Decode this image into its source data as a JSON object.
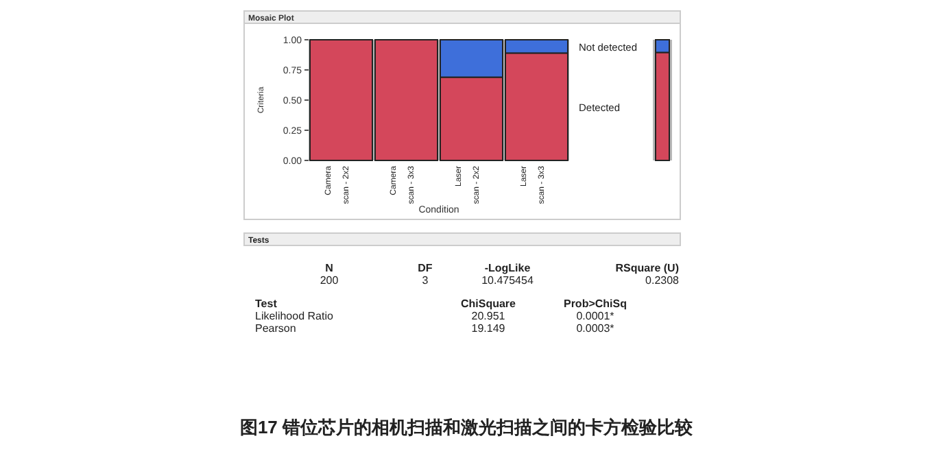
{
  "chart_data": {
    "type": "bar",
    "stacked": true,
    "title": "Mosaic Plot",
    "xlabel": "Condition",
    "ylabel": "Criteria",
    "categories": [
      "Camera scan - 2x2",
      "Camera scan - 3x3",
      "Laser scan - 2x2",
      "Laser scan - 3x3"
    ],
    "series": [
      {
        "name": "Detected",
        "color": "#d4475b",
        "values": [
          1,
          1,
          0.69,
          0.89
        ]
      },
      {
        "name": "Not detected",
        "color": "#3e6fda",
        "values": [
          0,
          0,
          0.31,
          0.11
        ]
      }
    ],
    "ylim": [
      0,
      1
    ],
    "yticks": [
      {
        "value": 0,
        "label": "0.00"
      },
      {
        "value": 0.25,
        "label": "0.25"
      },
      {
        "value": 0.5,
        "label": "0.50"
      },
      {
        "value": 0.75,
        "label": "0.75"
      },
      {
        "value": 1,
        "label": "1.00"
      }
    ],
    "grid": false,
    "legend": "right",
    "annotations": [
      "Tests",
      "N",
      "DF",
      "-LogLike",
      "RSquare (U)",
      "200",
      "3",
      "10.475454",
      "0.2308",
      "Test",
      "ChiSquare",
      "Prob>ChiSq",
      "Likelihood Ratio",
      "20.951",
      "0.0001*",
      "Pearson",
      "19.149",
      "0.0003*",
      "图17 错位芯片的相机扫描和激光扫描之间的卡方检验比较"
    ]
  }
}
